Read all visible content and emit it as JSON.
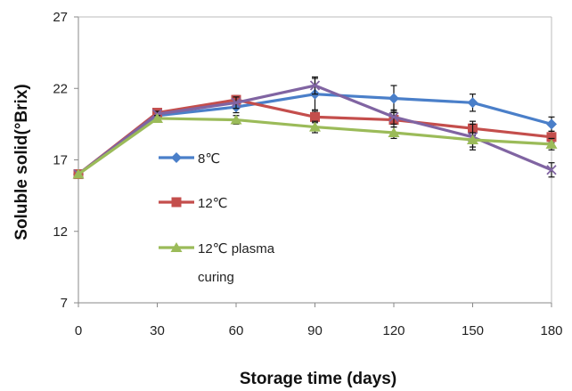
{
  "chart_data": {
    "type": "line",
    "xlabel": "Storage time (days)",
    "ylabel": "Soluble solid(°Brix)",
    "x": [
      0,
      30,
      60,
      90,
      120,
      150,
      180
    ],
    "xticks": [
      "0",
      "30",
      "60",
      "90",
      "120",
      "150",
      "180"
    ],
    "ylim": [
      7,
      27
    ],
    "yticks": [
      "7",
      "12",
      "17",
      "22",
      "27"
    ],
    "grid": false,
    "legend_position": "left inside plot",
    "series": [
      {
        "name": "8℃",
        "color": "#4a7fc9",
        "marker": "diamond",
        "values": [
          16.0,
          20.1,
          20.7,
          21.6,
          21.3,
          21.0,
          19.5
        ],
        "errors": [
          0,
          0.2,
          0.4,
          1.1,
          0.9,
          0.6,
          0.5
        ]
      },
      {
        "name": "12℃",
        "color": "#c44e4c",
        "marker": "square",
        "values": [
          16.0,
          20.3,
          21.2,
          20.0,
          19.8,
          19.2,
          18.6
        ],
        "errors": [
          0,
          0.2,
          0.3,
          0.4,
          0.5,
          0.5,
          0.4
        ]
      },
      {
        "name": "",
        "color": "#8064a2",
        "marker": "x",
        "values": [
          16.0,
          20.2,
          21.0,
          22.2,
          20.0,
          18.6,
          16.3
        ],
        "errors": [
          0,
          0.2,
          0.4,
          0.6,
          0.5,
          0.9,
          0.5
        ]
      },
      {
        "name": "12℃ plasma curing",
        "legend_lines": [
          "12℃ plasma",
          "curing"
        ],
        "color": "#9bbb59",
        "marker": "triangle",
        "values": [
          16.0,
          19.9,
          19.8,
          19.3,
          18.9,
          18.4,
          18.1
        ],
        "errors": [
          0,
          0.2,
          0.3,
          0.4,
          0.4,
          0.5,
          0.4
        ]
      }
    ],
    "legend": [
      {
        "label": "8℃",
        "color": "#4a7fc9",
        "marker": "diamond"
      },
      {
        "label": "12℃",
        "color": "#c44e4c",
        "marker": "square"
      },
      {
        "label": "12℃ plasma",
        "label2": "curing",
        "color": "#9bbb59",
        "marker": "triangle"
      }
    ]
  }
}
